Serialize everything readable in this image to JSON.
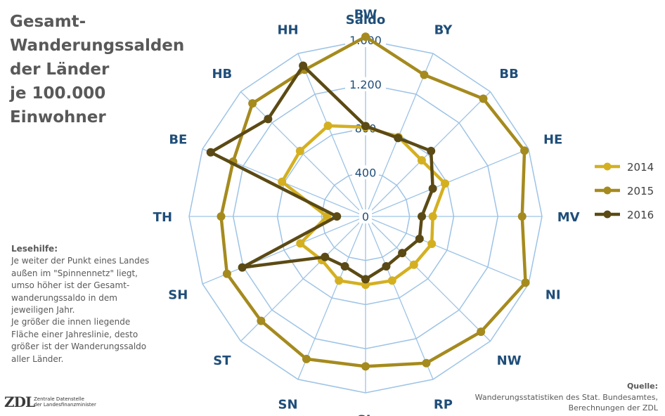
{
  "title_lines": [
    "Gesamt-",
    "Wanderungssalden",
    "der Länder",
    "je 100.000",
    "Einwohner"
  ],
  "help": {
    "heading": "Lesehilfe:",
    "lines": [
      "Je weiter der Punkt eines Landes",
      "außen im \"Spinnennetz\" liegt,",
      "umso höher ist der Gesamt-",
      "wanderungssaldo in dem",
      "jeweiligen Jahr.",
      "Je größer die innen liegende",
      "Fläche einer Jahreslinie, desto",
      "größer ist der Wanderungssaldo",
      "aller Länder."
    ]
  },
  "source": {
    "heading": "Quelle:",
    "lines": [
      "Wanderungsstatistiken des Stat. Bundesamtes,",
      "Berechnungen der ZDL"
    ]
  },
  "logo": {
    "mark": "ZDL",
    "lines": [
      "Zentrale Datenstelle",
      "der Landesfinanzminister"
    ]
  },
  "colors": {
    "grid": "#9dc3e6",
    "label": "#1f4e79",
    "y2014": "#d4b021",
    "y2015": "#a58a1e",
    "y2016": "#5b4a14"
  },
  "chart_data": {
    "type": "radar",
    "axis_title": "Saldo",
    "categories": [
      "BW",
      "BY",
      "BB",
      "HE",
      "MV",
      "NI",
      "NW",
      "RP",
      "SL",
      "SN",
      "ST",
      "SH",
      "TH",
      "BE",
      "HB",
      "HH"
    ],
    "ticks": [
      0,
      400,
      800,
      1200,
      1600
    ],
    "tick_labels": [
      "0",
      "400",
      "800",
      "1.200",
      "1.600"
    ],
    "rlim": [
      0,
      1600
    ],
    "legend_position": "right",
    "series": [
      {
        "name": "2014",
        "values": [
          810,
          780,
          720,
          780,
          610,
          650,
          620,
          630,
          620,
          630,
          560,
          640,
          350,
          820,
          840,
          890
        ]
      },
      {
        "name": "2015",
        "values": [
          1630,
          1390,
          1510,
          1560,
          1420,
          1570,
          1480,
          1440,
          1360,
          1400,
          1340,
          1360,
          1310,
          1300,
          1450,
          1440
        ]
      },
      {
        "name": "2016",
        "values": [
          820,
          770,
          840,
          660,
          510,
          530,
          470,
          490,
          570,
          490,
          520,
          1210,
          260,
          1520,
          1250,
          1480
        ]
      }
    ]
  }
}
